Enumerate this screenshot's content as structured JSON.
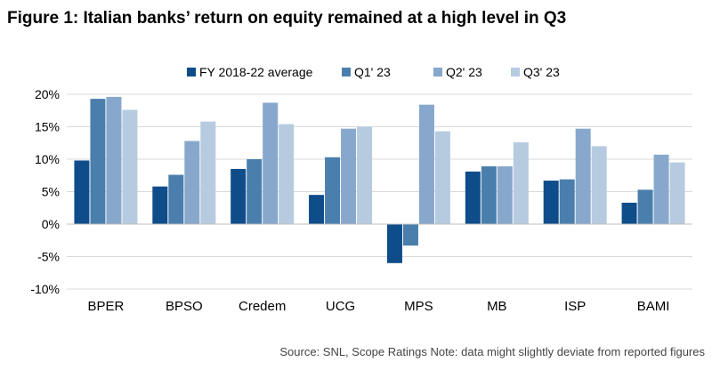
{
  "title": "Figure 1: Italian banks’ return on equity remained at a high level in Q3",
  "source": "Source: SNL, Scope Ratings Note: data might slightly deviate from reported figures",
  "chart_data": {
    "type": "bar",
    "title": "Figure 1: Italian banks’ return on equity remained at a high level in Q3",
    "xlabel": "",
    "ylabel": "",
    "ylim": [
      -10,
      20
    ],
    "yticks": [
      -10,
      -5,
      0,
      5,
      10,
      15,
      20
    ],
    "ytick_labels": [
      "-10%",
      "-5%",
      "0%",
      "5%",
      "10%",
      "15%",
      "20%"
    ],
    "grid": true,
    "legend_position": "top",
    "categories": [
      "BPER",
      "BPSO",
      "Credem",
      "UCG",
      "MPS",
      "MB",
      "ISP",
      "BAMI"
    ],
    "series": [
      {
        "name": "FY 2018-22 average",
        "color": "#0f4c8a",
        "values": [
          9.8,
          5.8,
          8.5,
          4.5,
          -6.0,
          8.1,
          6.7,
          3.3
        ]
      },
      {
        "name": "Q1' 23",
        "color": "#4a7fad",
        "values": [
          19.3,
          7.6,
          10.0,
          10.3,
          -3.3,
          8.9,
          6.9,
          5.3
        ]
      },
      {
        "name": "Q2' 23",
        "color": "#87a8cc",
        "values": [
          19.6,
          12.8,
          18.7,
          14.7,
          18.4,
          8.9,
          14.7,
          10.7
        ]
      },
      {
        "name": "Q3' 23",
        "color": "#b6cbe0",
        "values": [
          17.6,
          15.8,
          15.4,
          15.0,
          14.3,
          12.6,
          12.0,
          9.5
        ]
      }
    ]
  }
}
